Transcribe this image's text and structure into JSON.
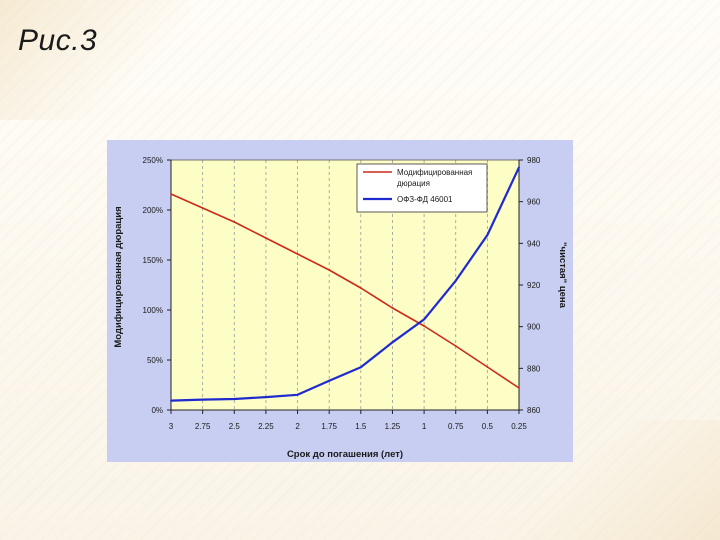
{
  "slide": {
    "title": "Рис.3"
  },
  "colors": {
    "plot_background": "#fdfdc6",
    "chart_background": "#c8cef2",
    "duration_line": "#cc2a1a",
    "price_line": "#1f2ad0"
  },
  "chart_data": {
    "type": "line",
    "x_axis_label": "Срок до погашения (лет)",
    "x_categories": [
      "3",
      "2.75",
      "2.5",
      "2.25",
      "2",
      "1.75",
      "1.5",
      "1.25",
      "1",
      "0.75",
      "0.5",
      "0.25"
    ],
    "left_axis": {
      "label": "Модифицированная дюрация",
      "ylim": [
        0,
        250
      ],
      "tick_values": [
        0,
        50,
        100,
        150,
        200,
        250
      ],
      "tick_labels": [
        "0%",
        "50%",
        "100%",
        "150%",
        "200%",
        "250%"
      ]
    },
    "right_axis": {
      "label": "\"чистая\" цена",
      "ylim": [
        860,
        980
      ],
      "tick_values": [
        860,
        880,
        900,
        920,
        940,
        960,
        980
      ],
      "tick_labels": [
        "860",
        "880",
        "900",
        "920",
        "940",
        "960",
        "980"
      ]
    },
    "grid": "vertical dashed",
    "legend_position": "top-right",
    "series": [
      {
        "name": "Модифицированная дюрация",
        "legend_lines": [
          "Модифицированная",
          "дюрация"
        ],
        "axis": "left",
        "color": "#cc2a1a",
        "values": [
          216,
          202,
          188,
          172,
          156,
          140,
          122,
          102,
          84,
          64,
          43,
          22
        ]
      },
      {
        "name": "ОФЗ-ФД 46001",
        "legend_lines": [
          "ОФЗ-ФД 46001"
        ],
        "axis": "right",
        "color": "#1f2ad0",
        "values": [
          864.5,
          865,
          865.3,
          866.2,
          867.3,
          874,
          880.5,
          892.5,
          903.5,
          922,
          944,
          976.5
        ]
      }
    ]
  }
}
